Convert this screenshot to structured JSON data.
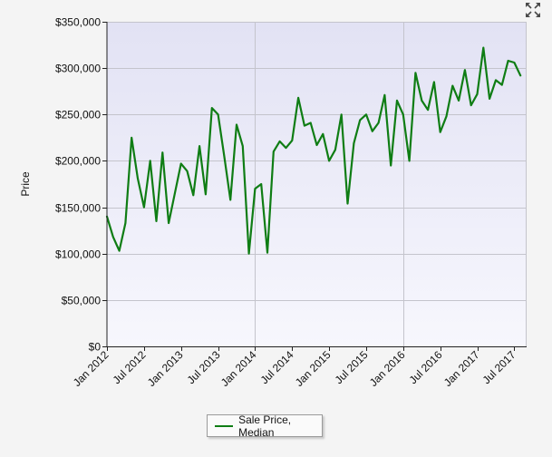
{
  "ui": {
    "expand_icon": "expand-arrows-icon",
    "colors": {
      "plot_background_top": "#e2e2f4",
      "plot_background_bottom": "#f7f7fd",
      "series_line": "#0f7d14",
      "gridline": "#c4c4cc"
    }
  },
  "chart_data": {
    "type": "line",
    "title": "",
    "ylabel": "Price",
    "xlabel": "",
    "ylim": [
      0,
      350000
    ],
    "yticks": [
      0,
      50000,
      100000,
      150000,
      200000,
      250000,
      300000,
      350000
    ],
    "ytick_labels": [
      "$0",
      "$50,000",
      "$100,000",
      "$150,000",
      "$200,000",
      "$250,000",
      "$300,000",
      "$350,000"
    ],
    "xlim": [
      "2012-01",
      "2017-09"
    ],
    "xtick_labels": [
      "Jan 2012",
      "Jul 2012",
      "Jan 2013",
      "Jul 2013",
      "Jan 2014",
      "Jul 2014",
      "Jan 2015",
      "Jul 2015",
      "Jan 2016",
      "Jul 2016",
      "Jan 2017",
      "Jul 2017"
    ],
    "xtick_months": [
      "2012-01",
      "2012-07",
      "2013-01",
      "2013-07",
      "2014-01",
      "2014-07",
      "2015-01",
      "2015-07",
      "2016-01",
      "2016-07",
      "2017-01",
      "2017-07"
    ],
    "vertical_gridlines_at": [
      "2014-01",
      "2016-01"
    ],
    "grid": true,
    "legend_position": "bottom-center",
    "series": [
      {
        "name": "Sale Price, Median",
        "color": "#0f7d14",
        "points": [
          [
            "2012-01",
            140000
          ],
          [
            "2012-02",
            118000
          ],
          [
            "2012-03",
            103000
          ],
          [
            "2012-04",
            133000
          ],
          [
            "2012-05",
            225000
          ],
          [
            "2012-06",
            181000
          ],
          [
            "2012-07",
            150000
          ],
          [
            "2012-08",
            200000
          ],
          [
            "2012-09",
            135000
          ],
          [
            "2012-10",
            209000
          ],
          [
            "2012-11",
            133000
          ],
          [
            "2012-12",
            165000
          ],
          [
            "2013-01",
            197000
          ],
          [
            "2013-02",
            189000
          ],
          [
            "2013-03",
            163000
          ],
          [
            "2013-04",
            216000
          ],
          [
            "2013-05",
            164000
          ],
          [
            "2013-06",
            257000
          ],
          [
            "2013-07",
            250000
          ],
          [
            "2013-08",
            205000
          ],
          [
            "2013-09",
            158000
          ],
          [
            "2013-10",
            239000
          ],
          [
            "2013-11",
            216000
          ],
          [
            "2013-12",
            100000
          ],
          [
            "2014-01",
            170000
          ],
          [
            "2014-02",
            175000
          ],
          [
            "2014-03",
            101000
          ],
          [
            "2014-04",
            210000
          ],
          [
            "2014-05",
            221000
          ],
          [
            "2014-06",
            214000
          ],
          [
            "2014-07",
            222000
          ],
          [
            "2014-08",
            268000
          ],
          [
            "2014-09",
            238000
          ],
          [
            "2014-10",
            241000
          ],
          [
            "2014-11",
            217000
          ],
          [
            "2014-12",
            229000
          ],
          [
            "2015-01",
            200000
          ],
          [
            "2015-02",
            212000
          ],
          [
            "2015-03",
            250000
          ],
          [
            "2015-04",
            154000
          ],
          [
            "2015-05",
            219000
          ],
          [
            "2015-06",
            244000
          ],
          [
            "2015-07",
            250000
          ],
          [
            "2015-08",
            232000
          ],
          [
            "2015-09",
            241000
          ],
          [
            "2015-10",
            271000
          ],
          [
            "2015-11",
            195000
          ],
          [
            "2015-12",
            265000
          ],
          [
            "2016-01",
            250000
          ],
          [
            "2016-02",
            200000
          ],
          [
            "2016-03",
            295000
          ],
          [
            "2016-04",
            265000
          ],
          [
            "2016-05",
            255000
          ],
          [
            "2016-06",
            285000
          ],
          [
            "2016-07",
            231000
          ],
          [
            "2016-08",
            248000
          ],
          [
            "2016-09",
            281000
          ],
          [
            "2016-10",
            265000
          ],
          [
            "2016-11",
            298000
          ],
          [
            "2016-12",
            260000
          ],
          [
            "2017-01",
            272000
          ],
          [
            "2017-02",
            322000
          ],
          [
            "2017-03",
            267000
          ],
          [
            "2017-04",
            287000
          ],
          [
            "2017-05",
            282000
          ],
          [
            "2017-06",
            308000
          ],
          [
            "2017-07",
            306000
          ],
          [
            "2017-08",
            292000
          ]
        ]
      }
    ]
  }
}
